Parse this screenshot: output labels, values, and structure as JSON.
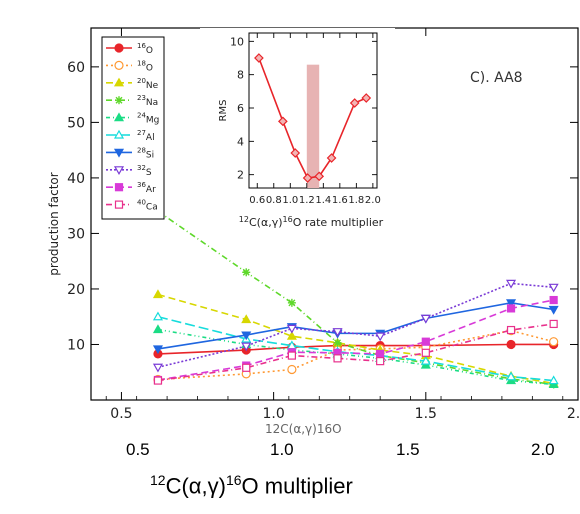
{
  "chart_data": [
    {
      "type": "line",
      "panel_label": "C). AA8",
      "ylabel": "production factor",
      "xlim": [
        0.4,
        2.0
      ],
      "ylim": [
        0,
        67
      ],
      "x_ticks": [
        "0.5",
        "1.0",
        "1.5",
        "2.0"
      ],
      "y_ticks": [
        "10",
        "20",
        "30",
        "40",
        "50",
        "60"
      ],
      "x": [
        0.62,
        0.91,
        1.06,
        1.21,
        1.35,
        1.5,
        1.78,
        1.92
      ],
      "series": [
        {
          "name": "16O",
          "label_mass": "16",
          "label_elem": "O",
          "color": "#e8252a",
          "marker": "circle-filled",
          "dash": "",
          "values": [
            8.3,
            9.0,
            9.5,
            9.8,
            9.8,
            9.8,
            10.0,
            10.0
          ]
        },
        {
          "name": "18O",
          "label_mass": "18",
          "label_elem": "O",
          "color": "#ff9933",
          "marker": "circle-open",
          "dash": "2,3",
          "values": [
            3.7,
            4.7,
            5.5,
            9.0,
            9.2,
            9.5,
            12.5,
            10.5
          ]
        },
        {
          "name": "20Ne",
          "label_mass": "20",
          "label_elem": "Ne",
          "color": "#d7d700",
          "marker": "tri-filled",
          "dash": "7,4",
          "values": [
            19.0,
            14.5,
            11.5,
            10.3,
            9.0,
            8.0,
            4.3,
            3.0
          ]
        },
        {
          "name": "23Na",
          "label_mass": "23",
          "label_elem": "Na",
          "color": "#5ed82a",
          "marker": "star",
          "dash": "6,3,1,3",
          "values": [
            34.0,
            23.0,
            17.5,
            10.3,
            8.0,
            6.7,
            3.8,
            2.8
          ]
        },
        {
          "name": "24Mg",
          "label_mass": "24",
          "label_elem": "Mg",
          "color": "#1bdc85",
          "marker": "tri-filled",
          "dash": "4,3,1,3,1,3",
          "values": [
            12.7,
            10.0,
            9.0,
            8.3,
            7.5,
            6.3,
            3.5,
            2.8
          ]
        },
        {
          "name": "27Al",
          "label_mass": "27",
          "label_elem": "Al",
          "color": "#16dcdc",
          "marker": "tri-open",
          "dash": "10,4",
          "values": [
            15.0,
            11.0,
            9.8,
            8.7,
            8.0,
            7.0,
            4.2,
            3.5
          ]
        },
        {
          "name": "28Si",
          "label_mass": "28",
          "label_elem": "Si",
          "color": "#1f66e0",
          "marker": "tri-down-filled",
          "dash": "",
          "values": [
            9.2,
            11.7,
            13.2,
            12.0,
            12.0,
            14.7,
            17.5,
            16.3
          ]
        },
        {
          "name": "32S",
          "label_mass": "32",
          "label_elem": "S",
          "color": "#7a3bd6",
          "marker": "tri-down-open",
          "dash": "2,2",
          "values": [
            5.9,
            9.7,
            12.9,
            12.3,
            11.5,
            14.7,
            21.0,
            20.3
          ]
        },
        {
          "name": "36Ar",
          "label_mass": "36",
          "label_elem": "Ar",
          "color": "#d83ad8",
          "marker": "square-filled",
          "dash": "7,4",
          "values": [
            3.6,
            6.2,
            8.6,
            8.5,
            8.3,
            10.5,
            16.5,
            18.0
          ]
        },
        {
          "name": "40Ca",
          "label_mass": "40",
          "label_elem": "Ca",
          "color": "#e8308c",
          "marker": "square-open",
          "dash": "6,3,1,3",
          "values": [
            3.5,
            5.8,
            8.0,
            7.5,
            7.0,
            8.5,
            12.6,
            13.7
          ]
        }
      ]
    },
    {
      "type": "line",
      "ylabel": "RMS",
      "xlabel_prefix_mass": "12",
      "xlabel_mid": "C(α,γ)",
      "xlabel_suffix_mass": "16",
      "xlabel_tail": "O rate multiplier",
      "xlim": [
        0.5,
        2.05
      ],
      "ylim": [
        1.2,
        10.5
      ],
      "x_ticks": [
        "0.6",
        "0.8",
        "1.0",
        "1.2",
        "1.4",
        "1.6",
        "1.8",
        "2.0"
      ],
      "y_ticks": [
        "2",
        "4",
        "6",
        "8",
        "10"
      ],
      "highlight_band": {
        "x": [
          1.2,
          1.35
        ],
        "y": [
          1.2,
          8.6
        ],
        "color": "#e7b3b3"
      },
      "series": [
        {
          "name": "RMS",
          "color": "#e8252a",
          "marker": "diamond",
          "x": [
            0.62,
            0.91,
            1.06,
            1.21,
            1.35,
            1.5,
            1.78,
            1.92
          ],
          "values": [
            9.0,
            5.2,
            3.3,
            1.8,
            1.9,
            3.0,
            6.3,
            6.6
          ]
        }
      ]
    }
  ],
  "outer_axis": {
    "ticks": [
      "0.5",
      "1.0",
      "1.5",
      "2.0"
    ],
    "label_prefix": "12",
    "label_mid": "C(α,γ)",
    "label_suffix": "16",
    "label_tail": "O multiplier"
  },
  "overlap_text": "12C(α,γ)16O"
}
